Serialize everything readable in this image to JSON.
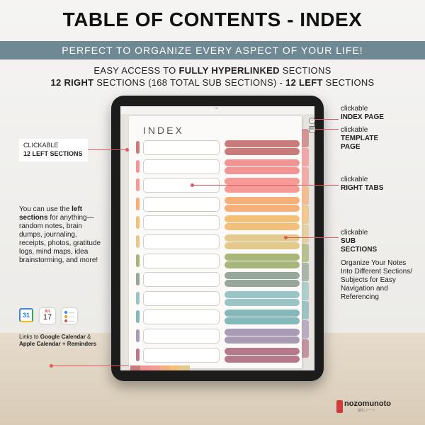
{
  "header": {
    "title": "TABLE OF CONTENTS - INDEX",
    "banner": "PERFECT TO ORGANIZE EVERY ASPECT OF YOUR LIFE!",
    "line1_pre": "EASY ACCESS TO ",
    "line1_bold": "FULLY HYPERLINKED",
    "line1_post": " SECTIONS",
    "line2_bold1": "12 RIGHT",
    "line2_mid": " SECTIONS (168 TOTAL SUB SECTIONS) - ",
    "line2_bold2": "12 LEFT",
    "line2_post": " SECTIONS"
  },
  "page": {
    "title": "INDEX",
    "dots": "•••"
  },
  "callouts": {
    "left_sections_pre": "CLICKABLE",
    "left_sections_bold": "12 LEFT SECTIONS",
    "index_pre": "clickable",
    "index_bold": "INDEX PAGE",
    "template_pre": "clickable",
    "template_bold1": "TEMPLATE",
    "template_bold2": "PAGE",
    "right_pre": "clickable",
    "right_bold": "RIGHT TABS",
    "sub_pre": "clickable",
    "sub_bold1": "SUB",
    "sub_bold2": "SECTIONS",
    "organize": "Organize Your Notes Into Different Sections/ Subjects for Easy Navigation and Referencing"
  },
  "left_note": {
    "pre": "You can use the ",
    "bold": "left sections",
    "post": " for anything—random notes, brain dumps, journaling, receipts, photos, gratitude logs, mind maps, idea brainstorming, and more!"
  },
  "apps": {
    "gcal_day": "31",
    "acal_month": "JUL",
    "acal_day": "17"
  },
  "links_note": {
    "pre": "Links to ",
    "bold1": "Google Calendar",
    "mid": " & ",
    "bold2": "Apple Calendar + Reminders"
  },
  "brand": {
    "name": "nozomunoto",
    "sub": "望むノート"
  },
  "palette": [
    "#c97b7b",
    "#f29494",
    "#f59a96",
    "#f5b07a",
    "#f2c078",
    "#e3c98c",
    "#a9b67a",
    "#97a79a",
    "#9bc5c4",
    "#85b8bb",
    "#a99ab5",
    "#b47a8c"
  ]
}
